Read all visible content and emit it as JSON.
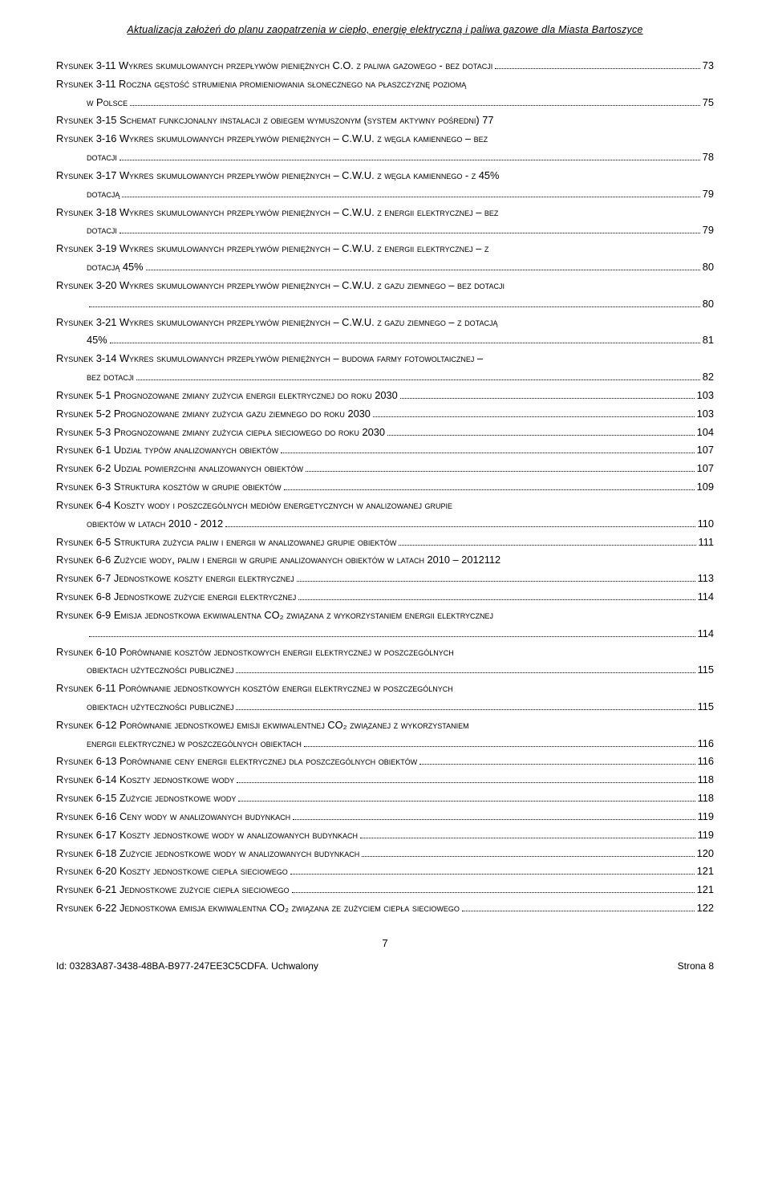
{
  "header": "Aktualizacja założeń do planu zaopatrzenia w ciepło, energię elektryczną i paliwa gazowe dla Miasta Bartoszyce",
  "entries": [
    {
      "lines": [
        "Rysunek 3-11 Wykres skumulowanych przepływów pieniężnych C.O. z paliwa gazowego - bez dotacji"
      ],
      "page": "73",
      "indent": false
    },
    {
      "lines": [
        "Rysunek 3-11 Roczna gęstość strumienia promieniowania słonecznego na płaszczyznę poziomą",
        "w Polsce"
      ],
      "page": "75",
      "indent": true
    },
    {
      "lines": [
        "Rysunek 3-15 Schemat funkcjonalny instalacji z obiegem wymuszonym (system aktywny pośredni) 77"
      ],
      "page": "",
      "indent": false
    },
    {
      "lines": [
        "Rysunek 3-16 Wykres skumulowanych przepływów pieniężnych – C.W.U. z węgla kamiennego – bez",
        "dotacji"
      ],
      "page": "78",
      "indent": true
    },
    {
      "lines": [
        "Rysunek 3-17 Wykres skumulowanych przepływów pieniężnych – C.W.U. z węgla kamiennego - z 45%",
        "dotacją"
      ],
      "page": "79",
      "indent": true
    },
    {
      "lines": [
        "Rysunek 3-18 Wykres skumulowanych przepływów pieniężnych – C.W.U. z energii elektrycznej – bez",
        "dotacji"
      ],
      "page": "79",
      "indent": true
    },
    {
      "lines": [
        "Rysunek 3-19 Wykres skumulowanych przepływów pieniężnych – C.W.U. z energii elektrycznej – z",
        "dotacją 45%"
      ],
      "page": "80",
      "indent": true
    },
    {
      "lines": [
        "Rysunek 3-20 Wykres skumulowanych przepływów pieniężnych – C.W.U. z gazu ziemnego – bez dotacji",
        ""
      ],
      "page": "80",
      "indent": true
    },
    {
      "lines": [
        "Rysunek 3-21 Wykres skumulowanych przepływów pieniężnych – C.W.U. z gazu ziemnego – z dotacją",
        "45%"
      ],
      "page": "81",
      "indent": true
    },
    {
      "lines": [
        "Rysunek 3-14 Wykres skumulowanych przepływów pieniężnych – budowa farmy fotowoltaicznej –",
        "bez dotacji"
      ],
      "page": "82",
      "indent": true
    },
    {
      "lines": [
        "Rysunek 5-1 Prognozowane zmiany zużycia energii elektrycznej do roku 2030"
      ],
      "page": "103",
      "indent": false
    },
    {
      "lines": [
        "Rysunek 5-2 Prognozowane zmiany zużycia gazu ziemnego do roku 2030"
      ],
      "page": "103",
      "indent": false
    },
    {
      "lines": [
        "Rysunek 5-3 Prognozowane zmiany zużycia ciepła sieciowego do roku 2030"
      ],
      "page": "104",
      "indent": false
    },
    {
      "lines": [
        "Rysunek 6-1 Udział typów analizowanych obiektów"
      ],
      "page": "107",
      "indent": false
    },
    {
      "lines": [
        "Rysunek 6-2 Udział powierzchni analizowanych obiektów"
      ],
      "page": "107",
      "indent": false
    },
    {
      "lines": [
        "Rysunek 6-3 Struktura kosztów w grupie obiektów"
      ],
      "page": "109",
      "indent": false
    },
    {
      "lines": [
        "Rysunek 6-4 Koszty wody i poszczególnych mediów energetycznych  w analizowanej grupie",
        "obiektów w latach 2010 - 2012"
      ],
      "page": "110",
      "indent": true
    },
    {
      "lines": [
        "Rysunek 6-5 Struktura zużycia paliw i energii w analizowanej grupie obiektów"
      ],
      "page": "111",
      "indent": false
    },
    {
      "lines": [
        "Rysunek 6-6 Zużycie wody, paliw i energii w grupie analizowanych obiektów  w latach 2010 – 2012112"
      ],
      "page": "",
      "indent": false
    },
    {
      "lines": [
        "Rysunek 6-7 Jednostkowe koszty energii elektrycznej"
      ],
      "page": "113",
      "indent": false
    },
    {
      "lines": [
        "Rysunek 6-8 Jednostkowe zużycie energii elektrycznej"
      ],
      "page": "114",
      "indent": false
    },
    {
      "lines": [
        "Rysunek 6-9 Emisja jednostkowa ekwiwalentna CO₂ związana z wykorzystaniem energii elektrycznej",
        ""
      ],
      "page": "114",
      "indent": true
    },
    {
      "lines": [
        "Rysunek 6-10 Porównanie kosztów jednostkowych energii elektrycznej w poszczególnych",
        "obiektach użyteczności publicznej"
      ],
      "page": "115",
      "indent": true
    },
    {
      "lines": [
        "Rysunek 6-11 Porównanie jednostkowych kosztów energii elektrycznej w poszczególnych",
        "obiektach użyteczności publicznej"
      ],
      "page": "115",
      "indent": true
    },
    {
      "lines": [
        "Rysunek 6-12 Porównanie jednostkowej emisji ekwiwalentnej CO₂ związanej z wykorzystaniem",
        "energii elektrycznej w poszczególnych obiektach"
      ],
      "page": "116",
      "indent": true
    },
    {
      "lines": [
        "Rysunek 6-13 Porównanie ceny energii elektrycznej dla poszczególnych obiektów"
      ],
      "page": "116",
      "indent": false
    },
    {
      "lines": [
        "Rysunek 6-14 Koszty jednostkowe wody"
      ],
      "page": "118",
      "indent": false
    },
    {
      "lines": [
        "Rysunek 6-15 Zużycie jednostkowe wody"
      ],
      "page": "118",
      "indent": false
    },
    {
      "lines": [
        "Rysunek 6-16 Ceny wody w analizowanych budynkach"
      ],
      "page": "119",
      "indent": false
    },
    {
      "lines": [
        "Rysunek 6-17 Koszty jednostkowe wody w analizowanych budynkach"
      ],
      "page": "119",
      "indent": false
    },
    {
      "lines": [
        "Rysunek 6-18 Zużycie jednostkowe wody w analizowanych budynkach"
      ],
      "page": "120",
      "indent": false
    },
    {
      "lines": [
        "Rysunek 6-20 Koszty jednostkowe ciepła sieciowego"
      ],
      "page": "121",
      "indent": false
    },
    {
      "lines": [
        "Rysunek 6-21 Jednostkowe zużycie ciepła sieciowego"
      ],
      "page": "121",
      "indent": false
    },
    {
      "lines": [
        "Rysunek 6-22 Jednostkowa emisja ekwiwalentna CO₂ związana ze zużyciem ciepła sieciowego"
      ],
      "page": "122",
      "indent": false
    }
  ],
  "bottomPageNumber": "7",
  "footerLeft": "Id: 03283A87-3438-48BA-B977-247EE3C5CDFA. Uchwalony",
  "footerRight": "Strona 8"
}
